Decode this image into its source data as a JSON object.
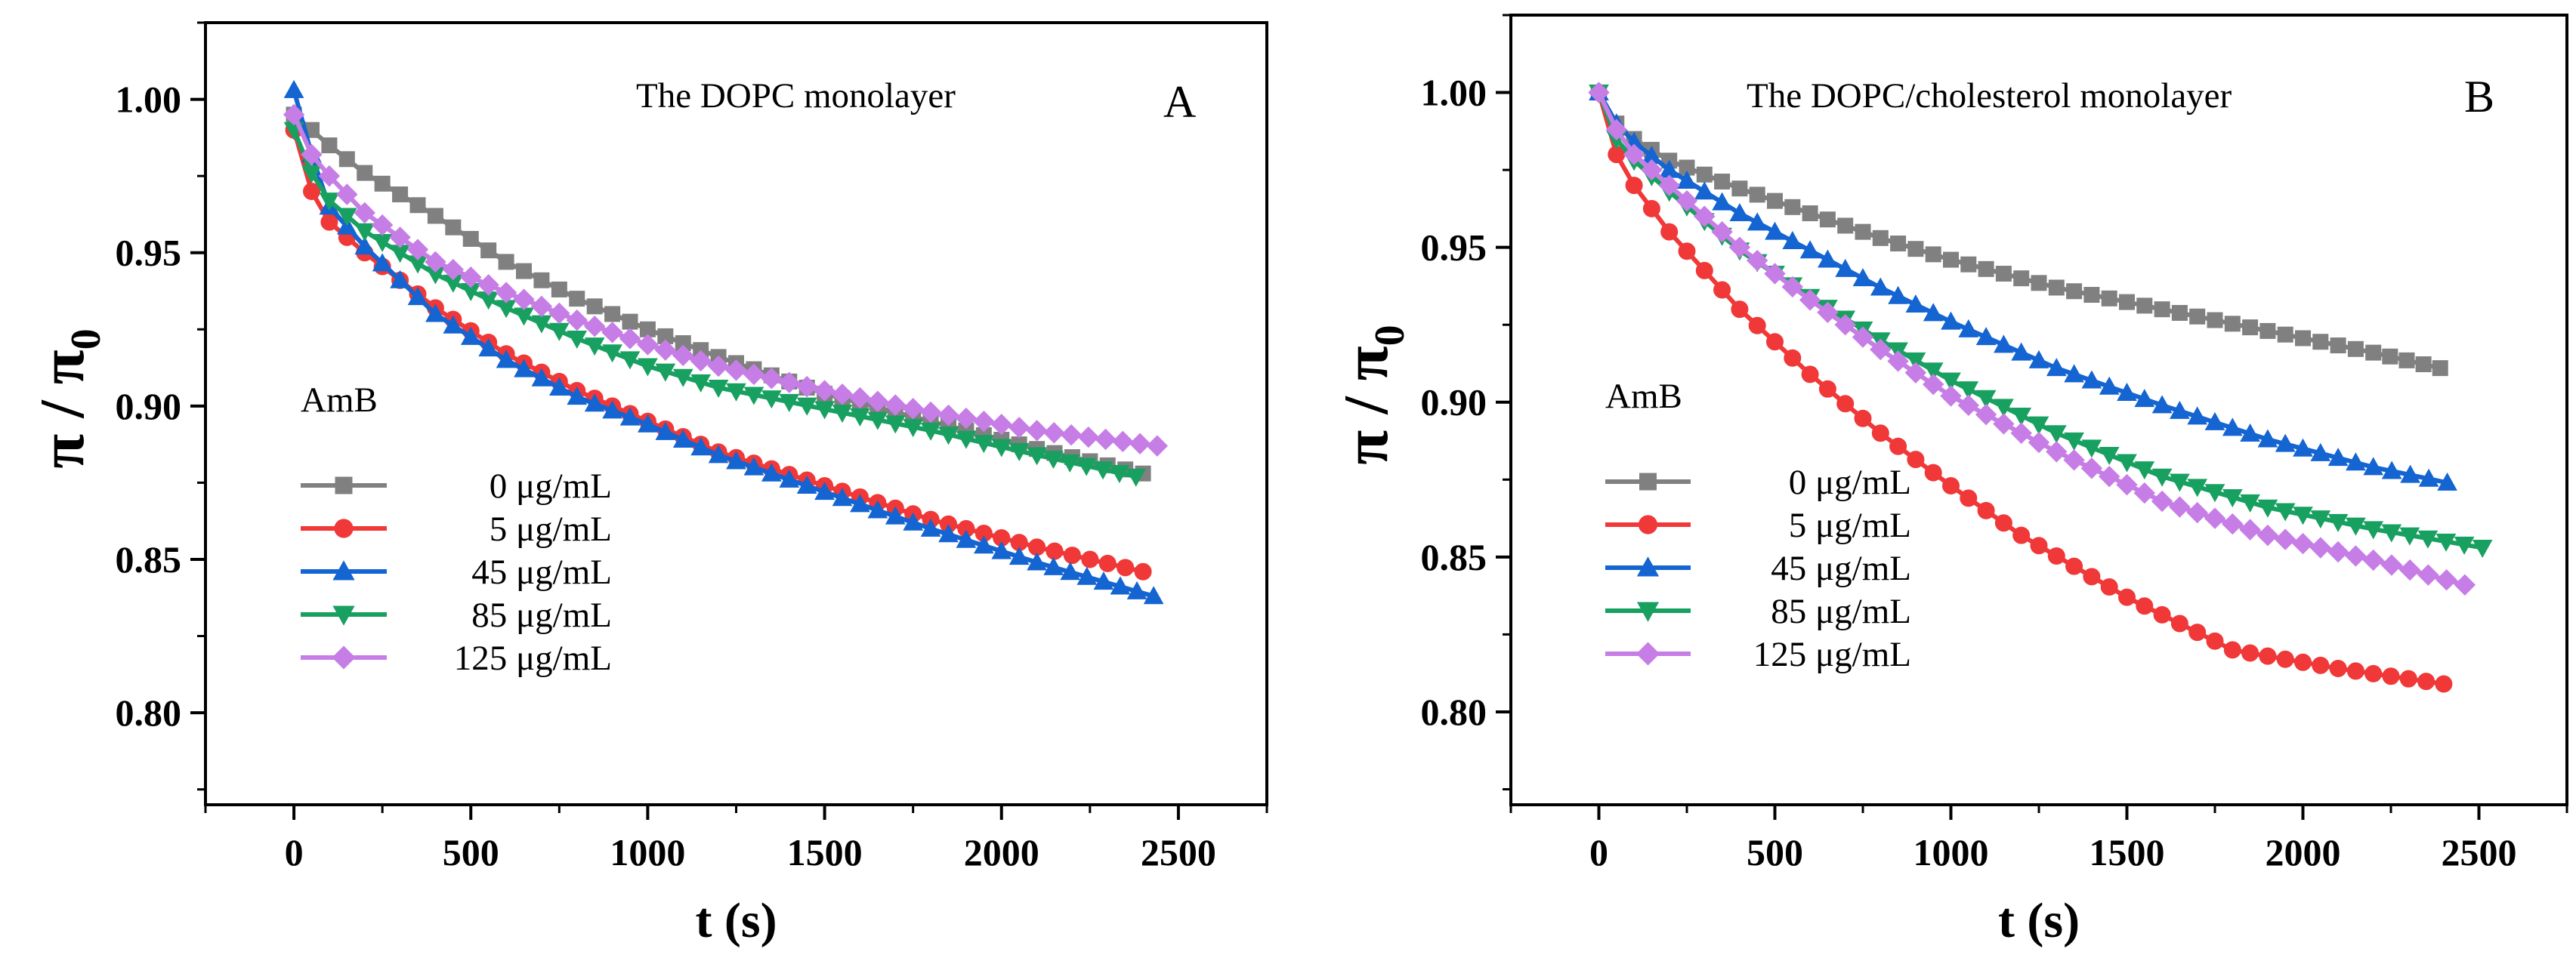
{
  "chart_data": [
    {
      "type": "line",
      "panel_letter": "A",
      "annotation": "The DOPC monolayer",
      "xlabel": "t (s)",
      "ylabel": "π / π",
      "ylabel_sub": "0",
      "xlim": [
        -250,
        2750
      ],
      "ylim": [
        0.77,
        1.025
      ],
      "xticks": [
        "0",
        "500",
        "1000",
        "1500",
        "2000",
        "2500"
      ],
      "yticks": [
        "0.80",
        "0.85",
        "0.90",
        "0.95",
        "1.00"
      ],
      "grid": false,
      "legend_title": "AmB",
      "legend_position": "left",
      "series": [
        {
          "name": "0 μg/mL",
          "color": "#808080",
          "marker": "square",
          "x": [
            0,
            100,
            200,
            400,
            600,
            800,
            1000,
            1200,
            1500,
            1800,
            2100,
            2400
          ],
          "y": [
            0.995,
            0.985,
            0.976,
            0.962,
            0.947,
            0.935,
            0.925,
            0.916,
            0.904,
            0.895,
            0.886,
            0.878
          ]
        },
        {
          "name": "5 μg/mL",
          "color": "#f03838",
          "marker": "circle",
          "x": [
            0,
            50,
            100,
            200,
            400,
            600,
            800,
            1000,
            1200,
            1500,
            1800,
            2100,
            2400
          ],
          "y": [
            0.99,
            0.97,
            0.96,
            0.95,
            0.932,
            0.917,
            0.905,
            0.895,
            0.885,
            0.874,
            0.863,
            0.854,
            0.846
          ]
        },
        {
          "name": "45 μg/mL",
          "color": "#1464d2",
          "marker": "triangle-up",
          "x": [
            0,
            50,
            100,
            200,
            400,
            600,
            800,
            1000,
            1200,
            1500,
            1800,
            2100,
            2430
          ],
          "y": [
            1.003,
            0.982,
            0.965,
            0.952,
            0.93,
            0.915,
            0.903,
            0.894,
            0.884,
            0.872,
            0.86,
            0.849,
            0.838
          ]
        },
        {
          "name": "85 μg/mL",
          "color": "#18a060",
          "marker": "triangle-down",
          "x": [
            0,
            50,
            100,
            200,
            400,
            600,
            800,
            1000,
            1200,
            1500,
            1800,
            2100,
            2380
          ],
          "y": [
            0.99,
            0.976,
            0.967,
            0.957,
            0.943,
            0.932,
            0.922,
            0.913,
            0.906,
            0.899,
            0.892,
            0.884,
            0.877
          ]
        },
        {
          "name": "125 μg/mL",
          "color": "#c67ee6",
          "marker": "diamond",
          "x": [
            0,
            50,
            100,
            200,
            400,
            600,
            800,
            1000,
            1200,
            1500,
            1800,
            2100,
            2440
          ],
          "y": [
            0.995,
            0.982,
            0.975,
            0.963,
            0.947,
            0.937,
            0.928,
            0.92,
            0.913,
            0.905,
            0.898,
            0.892,
            0.887
          ]
        }
      ]
    },
    {
      "type": "line",
      "panel_letter": "B",
      "annotation": "The DOPC/cholesterol monolayer",
      "xlabel": "t (s)",
      "ylabel": "π / π",
      "ylabel_sub": "0",
      "xlim": [
        -250,
        2750
      ],
      "ylim": [
        0.77,
        1.025
      ],
      "xticks": [
        "0",
        "500",
        "1000",
        "1500",
        "2000",
        "2500"
      ],
      "yticks": [
        "0.80",
        "0.85",
        "0.90",
        "0.95",
        "1.00"
      ],
      "grid": false,
      "legend_title": "AmB",
      "legend_position": "left",
      "series": [
        {
          "name": "0 μg/mL",
          "color": "#808080",
          "marker": "square",
          "x": [
            0,
            50,
            100,
            200,
            400,
            600,
            800,
            1000,
            1300,
            1600,
            1900,
            2200,
            2390
          ],
          "y": [
            1.0,
            0.99,
            0.985,
            0.978,
            0.969,
            0.961,
            0.953,
            0.946,
            0.937,
            0.93,
            0.923,
            0.916,
            0.911
          ]
        },
        {
          "name": "5 μg/mL",
          "color": "#f03838",
          "marker": "circle",
          "x": [
            0,
            50,
            100,
            200,
            400,
            600,
            800,
            1000,
            1200,
            1500,
            1800,
            2100,
            2400
          ],
          "y": [
            1.0,
            0.98,
            0.97,
            0.955,
            0.93,
            0.909,
            0.89,
            0.873,
            0.857,
            0.837,
            0.82,
            0.814,
            0.809
          ]
        },
        {
          "name": "45 μg/mL",
          "color": "#1464d2",
          "marker": "triangle-up",
          "x": [
            0,
            50,
            100,
            200,
            400,
            600,
            800,
            1000,
            1300,
            1600,
            1900,
            2200,
            2410
          ],
          "y": [
            1.0,
            0.99,
            0.984,
            0.975,
            0.961,
            0.949,
            0.937,
            0.926,
            0.911,
            0.899,
            0.888,
            0.879,
            0.874
          ]
        },
        {
          "name": "85 μg/mL",
          "color": "#18a060",
          "marker": "triangle-down",
          "x": [
            0,
            50,
            100,
            200,
            400,
            600,
            800,
            1000,
            1300,
            1600,
            1900,
            2200,
            2510
          ],
          "y": [
            1.0,
            0.985,
            0.978,
            0.968,
            0.949,
            0.934,
            0.92,
            0.907,
            0.89,
            0.876,
            0.866,
            0.859,
            0.853
          ]
        },
        {
          "name": "125 μg/mL",
          "color": "#c67ee6",
          "marker": "diamond",
          "x": [
            0,
            50,
            100,
            200,
            400,
            600,
            800,
            1000,
            1300,
            1600,
            1900,
            2200,
            2460
          ],
          "y": [
            1.0,
            0.988,
            0.98,
            0.97,
            0.95,
            0.933,
            0.917,
            0.902,
            0.884,
            0.868,
            0.857,
            0.849,
            0.841
          ]
        }
      ]
    }
  ]
}
